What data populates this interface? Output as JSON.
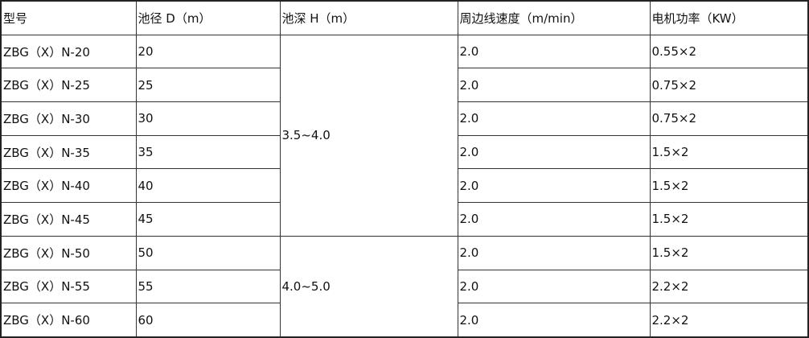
{
  "headers": [
    "型号",
    "池径 D（m）",
    "池深 H（m）",
    "周边线速度（m/min）",
    "电机功率（KW）"
  ],
  "rows": [
    {
      "model": "ZBG（X）N-20",
      "diameter": "20",
      "speed": "2.0",
      "power": "0.55×2"
    },
    {
      "model": "ZBG（X）N-25",
      "diameter": "25",
      "speed": "2.0",
      "power": "0.75×2"
    },
    {
      "model": "ZBG（X）N-30",
      "diameter": "30",
      "speed": "2.0",
      "power": "0.75×2"
    },
    {
      "model": "ZBG（X）N-35",
      "diameter": "35",
      "speed": "2.0",
      "power": "1.5×2"
    },
    {
      "model": "ZBG（X）N-40",
      "diameter": "40",
      "speed": "2.0",
      "power": "1.5×2"
    },
    {
      "model": "ZBG（X）N-45",
      "diameter": "45",
      "speed": "2.0",
      "power": "1.5×2"
    },
    {
      "model": "ZBG（X）N-50",
      "diameter": "50",
      "speed": "2.0",
      "power": "1.5×2"
    },
    {
      "model": "ZBG（X）N-55",
      "diameter": "55",
      "speed": "2.0",
      "power": "2.2×2"
    },
    {
      "model": "ZBG（X）N-60",
      "diameter": "60",
      "speed": "2.0",
      "power": "2.2×2"
    }
  ],
  "depth_groups": [
    "3.5~4.0",
    "4.0~5.0"
  ]
}
